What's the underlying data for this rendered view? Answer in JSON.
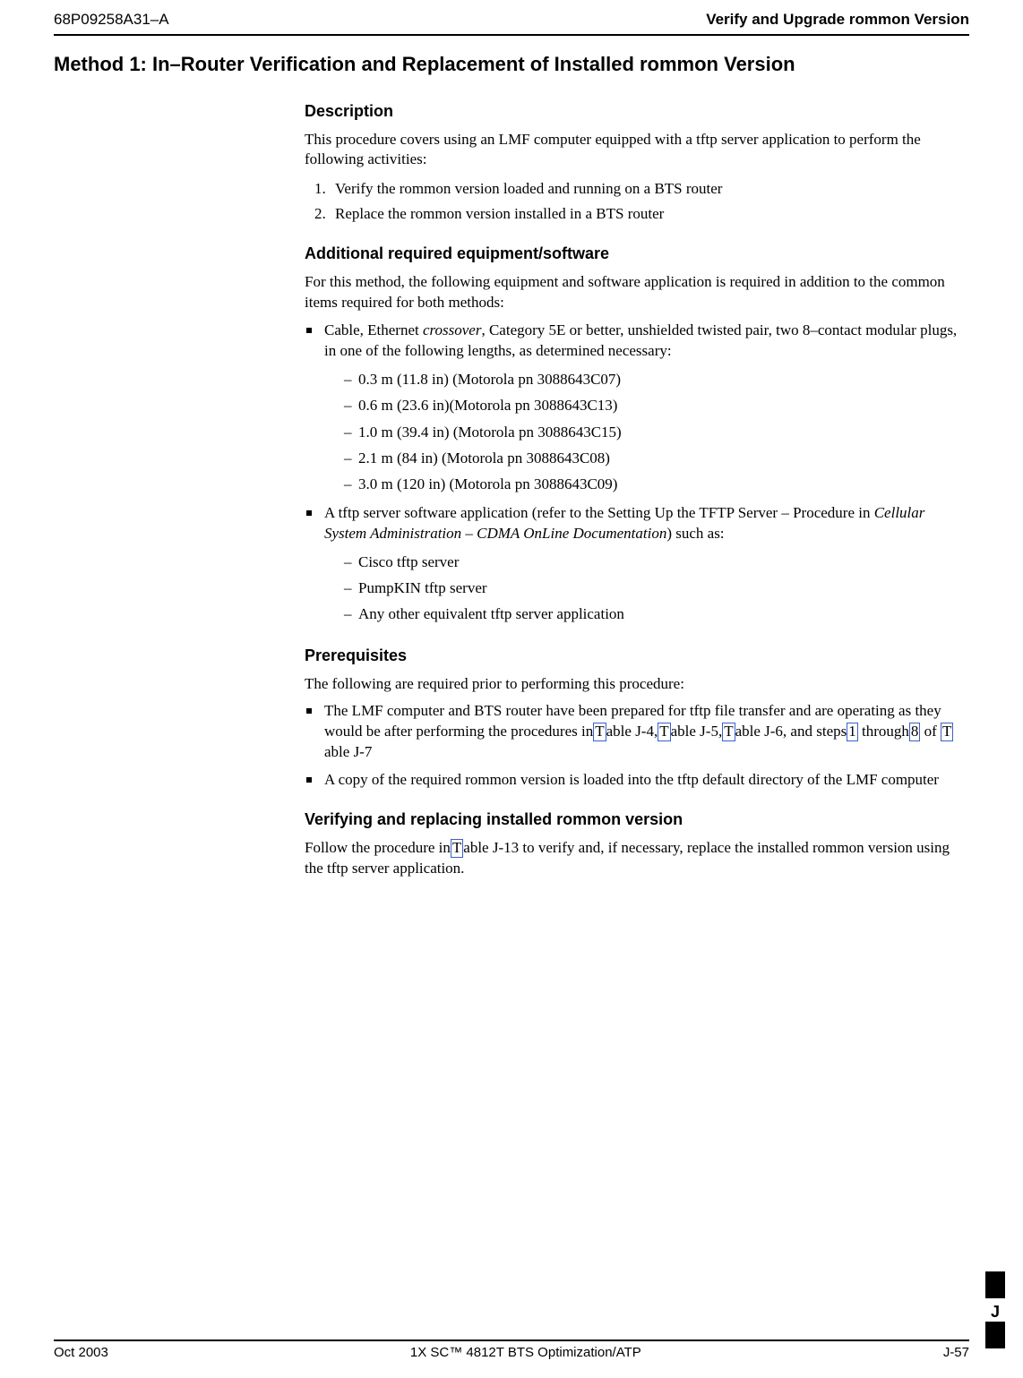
{
  "header": {
    "doc_id": "68P09258A31–A",
    "title": "Verify and Upgrade rommon Version"
  },
  "section_title": "Method 1: In–Router Verification and Replacement of Installed rommon Version",
  "description": {
    "heading": "Description",
    "intro": "This procedure covers using an LMF computer equipped with a tftp server application to perform the following activities:",
    "steps": [
      "Verify the rommon version loaded and running on a BTS router",
      "Replace the rommon version installed in a BTS router"
    ]
  },
  "equipment": {
    "heading": "Additional required equipment/software",
    "intro": "For this method, the following equipment and software application is required in addition to the common items required for both methods:",
    "bullet1_pre": "Cable, Ethernet ",
    "bullet1_em": "crossover",
    "bullet1_post": ", Category 5E or better, unshielded twisted pair, two 8–contact modular plugs, in one of the following lengths, as determined necessary:",
    "cables": [
      "0.3 m (11.8 in) (Motorola pn 3088643C07)",
      "0.6 m (23.6 in)(Motorola pn 3088643C13)",
      "1.0 m (39.4 in) (Motorola pn 3088643C15)",
      "2.1 m (84 in) (Motorola pn 3088643C08)",
      "3.0 m (120 in) (Motorola pn 3088643C09)"
    ],
    "bullet2_pre": "A tftp server software application (refer to the Setting Up the TFTP Server – Procedure in ",
    "bullet2_em": "Cellular System Administration – CDMA OnLine Documentation",
    "bullet2_post": ") such as:",
    "servers": [
      "Cisco tftp server",
      "PumpKIN tftp server",
      "Any other equivalent tftp server application"
    ]
  },
  "prereq": {
    "heading": "Prerequisites",
    "intro": "The following are required prior to performing this procedure:",
    "item1_a": "The LMF computer and BTS router have been prepared for tftp file transfer and are operating as they would be after performing the procedures in",
    "item1_link1": " T",
    "item1_b": "able J-4,",
    "item1_link2": " T",
    "item1_c": "able J-5,",
    "item1_link3": " T",
    "item1_d": "able J-6, and steps",
    "item1_link4": " 1",
    "item1_e": " through",
    "item1_link5": " 8",
    "item1_f": " of ",
    "item1_link6": "T",
    "item1_g": "able J-7",
    "item2": "A copy of the required rommon version is loaded into the tftp default directory of the LMF computer"
  },
  "verify": {
    "heading": "Verifying and replacing installed rommon version",
    "text_a": "Follow the procedure in",
    "link": " T",
    "text_b": "able J-13 to verify and, if necessary, replace the installed rommon version using the tftp server application."
  },
  "footer": {
    "date": "Oct 2003",
    "center": "1X SC™ 4812T BTS Optimization/ATP",
    "page": "J-57",
    "tab_letter": "J"
  }
}
